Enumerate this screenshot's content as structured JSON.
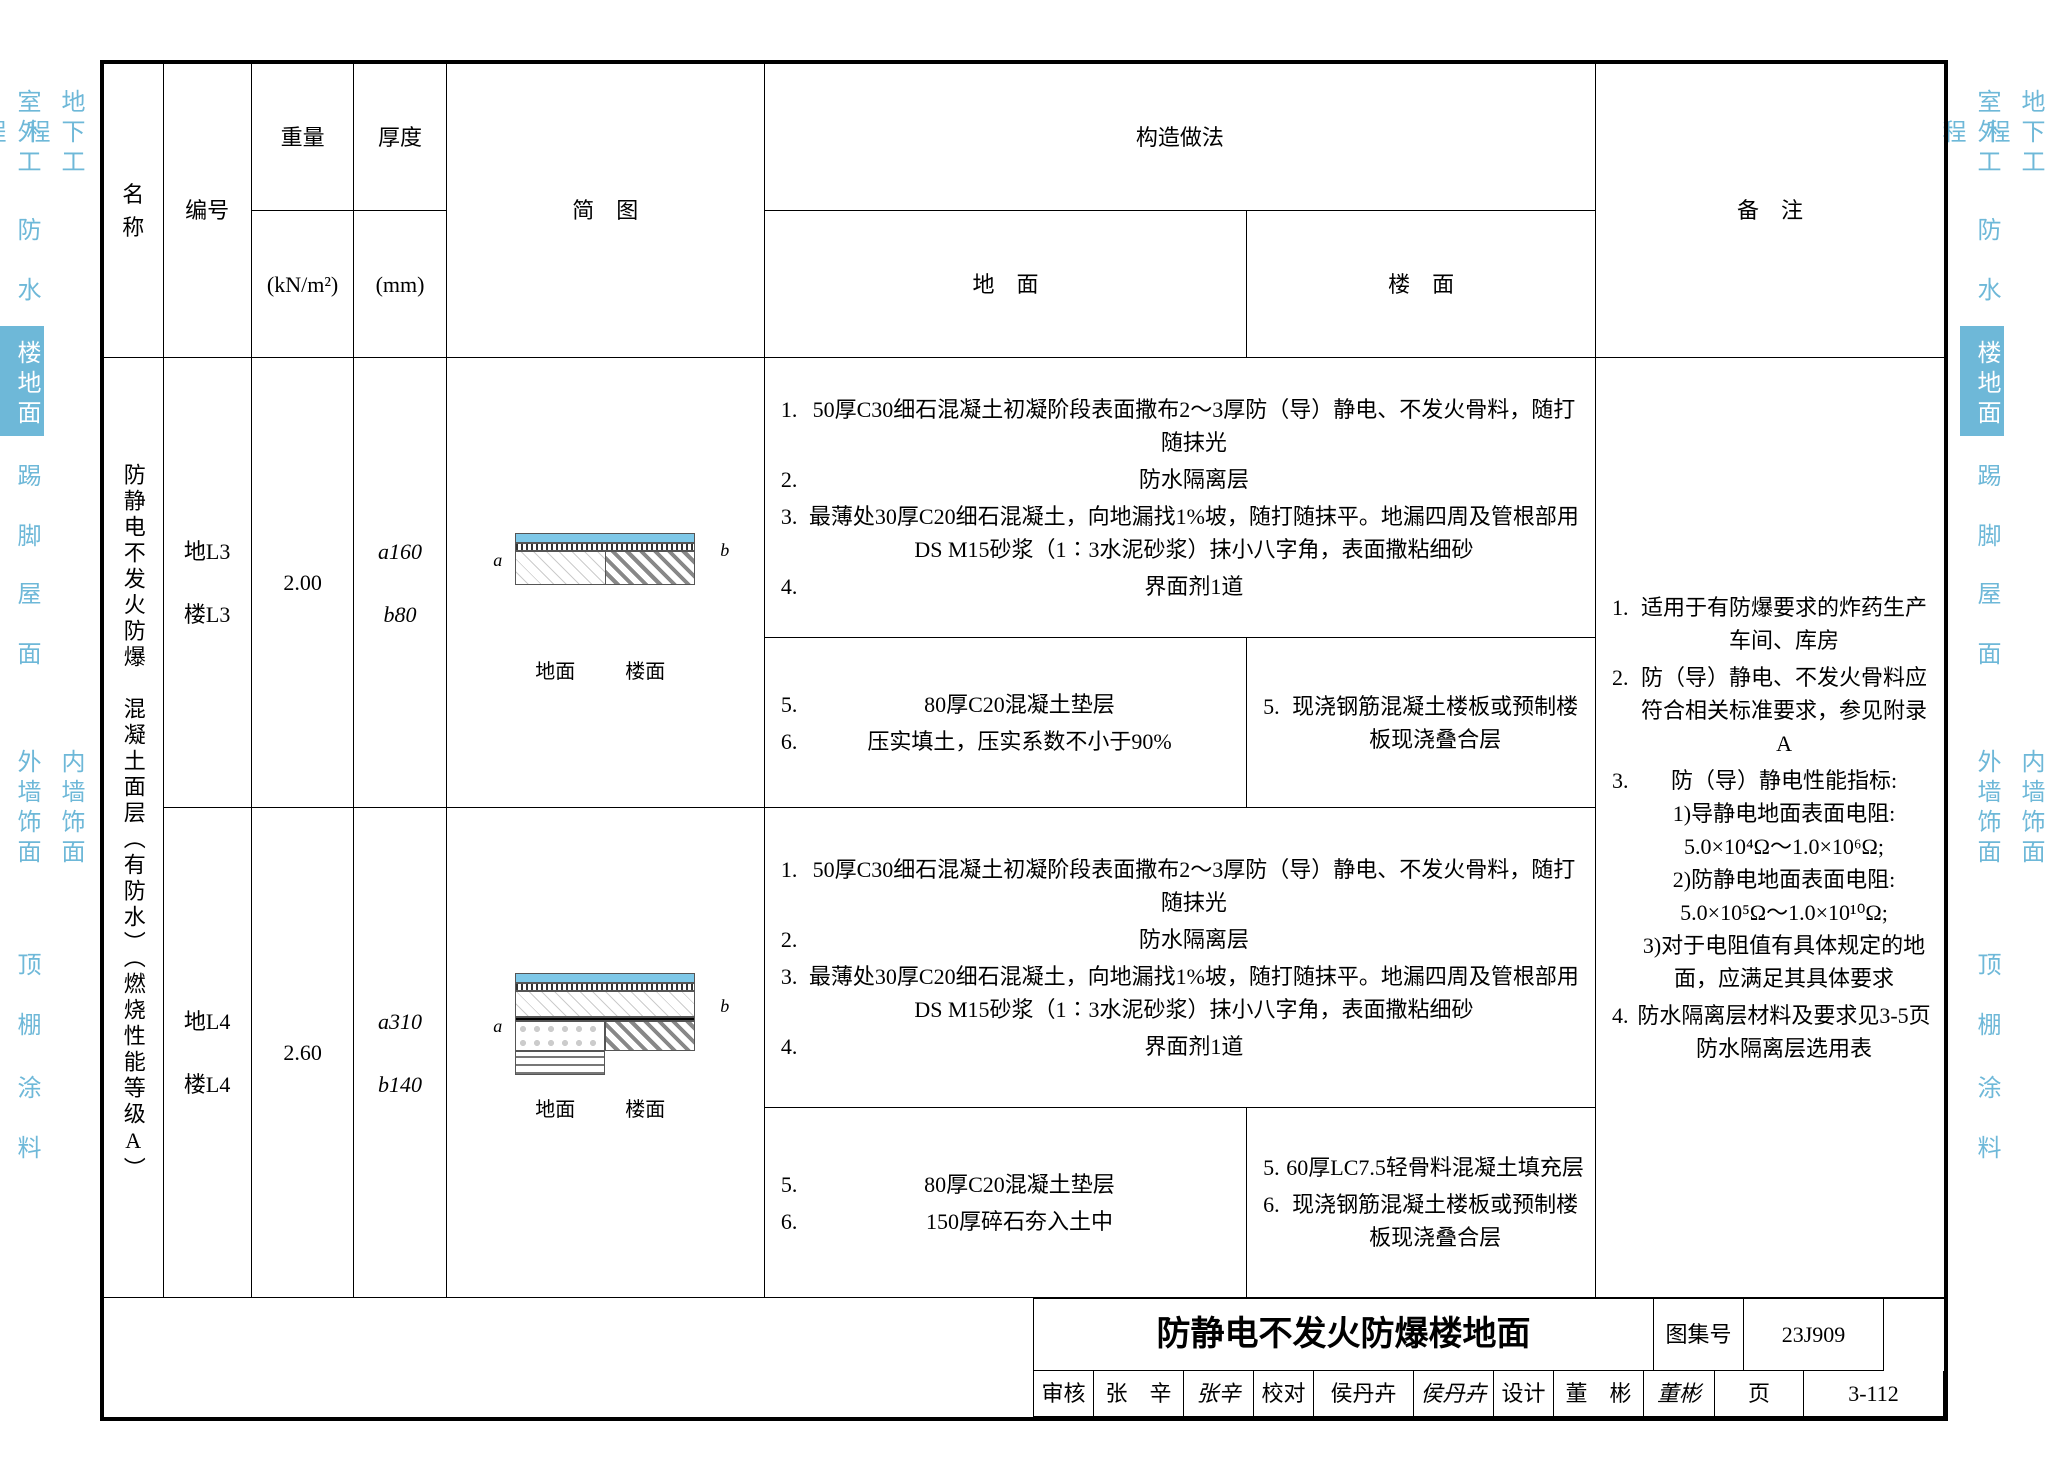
{
  "side_tabs": {
    "left_outer": [
      "室外工程",
      "防　水",
      "楼地面",
      "踢　脚",
      "屋　面",
      "外墙饰面",
      "顶　棚",
      "涂　料"
    ],
    "left_inner": [
      "地下工程",
      "",
      "",
      "",
      "",
      "内墙饰面",
      "",
      ""
    ],
    "active_left": "楼地面",
    "right_inner": [
      "室外工程",
      "防　水",
      "楼地面",
      "踢　脚",
      "屋　面",
      "外墙饰面",
      "顶　棚",
      "涂　料"
    ],
    "right_outer": [
      "地下工程",
      "",
      "",
      "",
      "",
      "内墙饰面",
      "",
      ""
    ],
    "active_right": "楼地面",
    "color": "#6eb8d8",
    "text_color": "#ffffff",
    "tab_heights": [
      120,
      100,
      110,
      100,
      100,
      230,
      110,
      100
    ]
  },
  "headers": {
    "name": "名称",
    "code": "编号",
    "weight": "重量",
    "weight_unit": "(kN/m²)",
    "thickness": "厚度",
    "thickness_unit": "(mm)",
    "diagram": "简　图",
    "construction": "构造做法",
    "floor_a": "地　面",
    "floor_b": "楼　面",
    "remarks": "备　注"
  },
  "name_text": "防静电不发火防爆　混凝土面层（有防水）（燃烧性能等级A）",
  "rows": [
    {
      "codes": [
        "地L3",
        "楼L3"
      ],
      "weight": "2.00",
      "thick": [
        "a160",
        "b80"
      ],
      "diagram_labels": {
        "left": "地面",
        "right": "楼面",
        "dim_a": "a",
        "dim_b": "b"
      },
      "top_items": [
        "50厚C30细石混凝土初凝阶段表面撒布2～3厚防（导）静电、不发火骨料，随打随抹光",
        "防水隔离层",
        "最薄处30厚C20细石混凝土，向地漏找1%坡，随打随抹平。地漏四周及管根部用DS M15砂浆（1∶3水泥砂浆）抹小八字角，表面撒粘细砂",
        "界面剂1道"
      ],
      "bot_a": [
        "80厚C20混凝土垫层",
        "压实填土，压实系数不小于90%"
      ],
      "bot_b": [
        "现浇钢筋混凝土楼板或预制楼板现浇叠合层"
      ],
      "bot_a_start": 5,
      "bot_b_start": 5
    },
    {
      "codes": [
        "地L4",
        "楼L4"
      ],
      "weight": "2.60",
      "thick": [
        "a310",
        "b140"
      ],
      "diagram_labels": {
        "left": "地面",
        "right": "楼面",
        "dim_a": "a",
        "dim_b": "b"
      },
      "top_items": [
        "50厚C30细石混凝土初凝阶段表面撒布2～3厚防（导）静电、不发火骨料，随打随抹光",
        "防水隔离层",
        "最薄处30厚C20细石混凝土，向地漏找1%坡，随打随抹平。地漏四周及管根部用DS M15砂浆（1∶3水泥砂浆）抹小八字角，表面撒粘细砂",
        "界面剂1道"
      ],
      "bot_a": [
        "80厚C20混凝土垫层",
        "150厚碎石夯入土中"
      ],
      "bot_b": [
        "60厚LC7.5轻骨料混凝土填充层",
        "现浇钢筋混凝土楼板或预制楼板现浇叠合层"
      ],
      "bot_a_start": 5,
      "bot_b_start": 5
    }
  ],
  "remarks": [
    "适用于有防爆要求的炸药生产车间、库房",
    "防（导）静电、不发火骨料应符合相关标准要求，参见附录A",
    "防（导）静电性能指标:\n1)导静电地面表面电阻: 5.0×10⁴Ω～1.0×10⁶Ω;\n2)防静电地面表面电阻: 5.0×10⁵Ω～1.0×10¹⁰Ω;\n3)对于电阻值有具体规定的地面，应满足其具体要求",
    "防水隔离层材料及要求见3-5页防水隔离层选用表"
  ],
  "title_block": {
    "title": "防静电不发火防爆楼地面",
    "album_label": "图集号",
    "album_no": "23J909",
    "page_label": "页",
    "page_no": "3-112",
    "review": "审核",
    "review_name": "张　辛",
    "review_sig": "张辛",
    "check": "校对",
    "check_name": "侯丹卉",
    "check_sig": "侯丹卉",
    "design": "设计",
    "design_name": "董　彬",
    "design_sig": "董彬"
  },
  "col_widths": {
    "name": 58,
    "code": 86,
    "weight": 100,
    "thick": 90,
    "diagram": 310,
    "floor_a": 470,
    "floor_b": 340,
    "remarks": 340
  },
  "colors": {
    "border": "#000000",
    "background": "#ffffff",
    "tab_blue": "#6eb8d8"
  }
}
